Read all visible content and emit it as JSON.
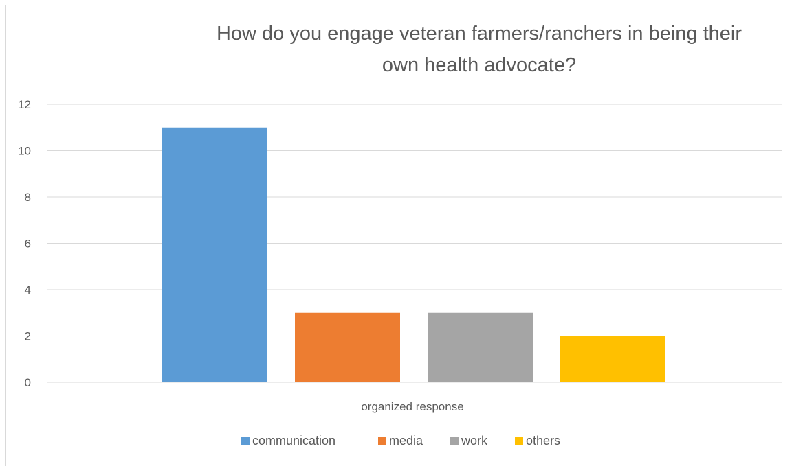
{
  "chart_data": {
    "type": "bar",
    "title_lines": [
      "How do you engage veteran farmers/ranchers in being their",
      "own health advocate?"
    ],
    "categories": [
      "organized response"
    ],
    "series": [
      {
        "name": "communication",
        "values": [
          11
        ],
        "color": "#5b9bd5"
      },
      {
        "name": "media",
        "values": [
          3
        ],
        "color": "#ed7d31"
      },
      {
        "name": "work",
        "values": [
          3
        ],
        "color": "#a5a5a5"
      },
      {
        "name": "others",
        "values": [
          2
        ],
        "color": "#ffc000"
      }
    ],
    "yticks": [
      0,
      2,
      4,
      6,
      8,
      10,
      12
    ],
    "ylim": [
      0,
      12
    ],
    "grid": true,
    "legend_position": "bottom"
  }
}
